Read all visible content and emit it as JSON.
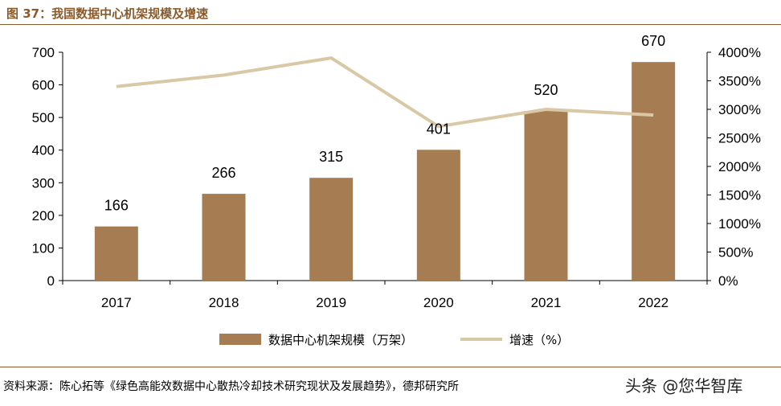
{
  "title": "图 37：我国数据中心机架规模及增速",
  "source": "资料来源：陈心拓等《绿色高能效数据中心散热冷却技术研究现状及发展趋势》，德邦研究所",
  "watermark": "头条 @您华智库",
  "colors": {
    "bar": "#A67C52",
    "line": "#D9C8A6",
    "accent": "#8B5A2B"
  },
  "chart_data": {
    "type": "bar+line",
    "categories": [
      "2017",
      "2018",
      "2019",
      "2020",
      "2021",
      "2022"
    ],
    "series": [
      {
        "name": "数据中心机架规模（万架）",
        "type": "bar",
        "axis": "left",
        "values": [
          166,
          266,
          315,
          401,
          520,
          670
        ]
      },
      {
        "name": "增速（%）",
        "type": "line",
        "axis": "right",
        "values": [
          3400,
          3600,
          3900,
          2700,
          3000,
          2900
        ]
      }
    ],
    "ylim_left": [
      0,
      700
    ],
    "yticks_left": [
      "0",
      "100",
      "200",
      "300",
      "400",
      "500",
      "600",
      "700"
    ],
    "ylim_right": [
      0,
      4000
    ],
    "yticks_right": [
      "0%",
      "500%",
      "1000%",
      "1500%",
      "2000%",
      "2500%",
      "3000%",
      "3500%",
      "4000%"
    ],
    "data_labels": [
      "166",
      "266",
      "315",
      "401",
      "520",
      "670"
    ],
    "legend_position": "bottom",
    "grid": false
  }
}
